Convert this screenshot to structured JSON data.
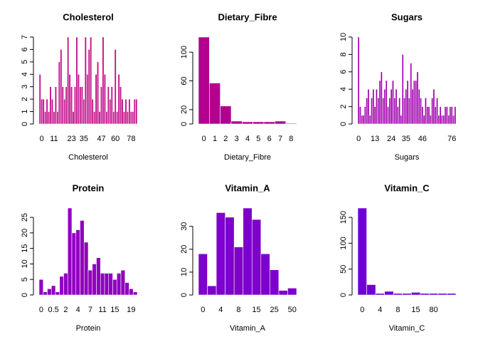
{
  "chart_data": [
    {
      "type": "bar",
      "title": "Cholesterol",
      "xlabel": "Cholesterol",
      "color": "#c2108a",
      "categories": [
        null,
        "0",
        null,
        null,
        null,
        null,
        null,
        null,
        "11",
        null,
        null,
        null,
        null,
        null,
        null,
        null,
        null,
        null,
        "23",
        null,
        null,
        null,
        null,
        null,
        null,
        "35",
        null,
        null,
        null,
        null,
        null,
        null,
        null,
        null,
        null,
        "47",
        null,
        null,
        null,
        null,
        null,
        null,
        null,
        "60",
        null,
        null,
        null,
        null,
        null,
        null,
        null,
        null,
        "78",
        null,
        null,
        null
      ],
      "values": [
        4,
        2,
        2,
        1,
        2,
        1,
        3,
        2,
        1,
        3,
        1,
        5,
        6,
        3,
        2,
        3,
        7,
        4,
        3,
        1,
        3,
        7,
        4,
        3,
        3,
        2,
        7,
        4,
        6,
        7,
        2,
        1,
        4,
        5,
        1,
        3,
        7,
        4,
        1,
        3,
        2,
        3,
        1,
        6,
        1,
        4,
        3,
        2,
        1,
        2,
        1,
        2,
        1,
        1,
        2,
        2
      ],
      "ylim": [
        0,
        7
      ],
      "yticks": [
        0,
        1,
        2,
        3,
        4,
        5,
        6,
        7
      ]
    },
    {
      "type": "bar",
      "title": "Dietary_Fibre",
      "xlabel": "Dietary_Fibre",
      "color": "#b3008f",
      "categories": [
        "0",
        "1",
        "2",
        "3",
        "4",
        "5",
        "6",
        "7",
        "8"
      ],
      "values": [
        121,
        57,
        25,
        4,
        3,
        3,
        3,
        4,
        1
      ],
      "ylim": [
        0,
        121
      ],
      "yticks": [
        0,
        20,
        60,
        100
      ]
    },
    {
      "type": "bar",
      "title": "Sugars",
      "xlabel": "Sugars",
      "color": "#a000ad",
      "categories": [
        "0",
        null,
        null,
        null,
        null,
        null,
        null,
        null,
        null,
        null,
        "13",
        null,
        null,
        null,
        null,
        null,
        null,
        null,
        null,
        null,
        "24",
        null,
        null,
        null,
        null,
        null,
        null,
        null,
        null,
        "35",
        null,
        null,
        null,
        null,
        null,
        null,
        null,
        null,
        null,
        "46",
        null,
        null,
        null,
        null,
        null,
        null,
        null,
        null,
        null,
        null,
        null,
        null,
        null,
        null,
        null,
        null,
        null,
        "76",
        null,
        null
      ],
      "values": [
        10,
        2,
        1,
        1,
        2,
        3,
        4,
        1,
        3,
        4,
        2,
        4,
        3,
        5,
        6,
        3,
        4,
        5,
        2,
        3,
        4,
        5,
        3,
        4,
        2,
        3,
        1,
        8,
        3,
        4,
        5,
        3,
        7,
        4,
        5,
        5,
        6,
        4,
        3,
        2,
        1,
        3,
        2,
        2,
        1,
        3,
        4,
        2,
        3,
        1,
        2,
        1,
        1,
        2,
        2,
        1,
        2,
        2,
        1,
        2
      ],
      "ylim": [
        0,
        10
      ],
      "yticks": [
        0,
        2,
        4,
        6,
        8,
        10
      ]
    },
    {
      "type": "bar",
      "title": "Protein",
      "xlabel": "Protein",
      "color": "#8f00bf",
      "categories": [
        "0",
        null,
        null,
        "0.5",
        null,
        null,
        "2",
        null,
        null,
        "4",
        null,
        null,
        "7",
        null,
        null,
        "11",
        null,
        null,
        "15",
        null,
        null,
        null,
        "19",
        null
      ],
      "values": [
        5,
        1,
        2,
        3,
        1,
        6,
        7,
        28,
        20,
        21,
        24,
        17,
        8,
        10,
        12,
        7,
        7,
        7,
        5,
        7,
        8,
        4,
        2,
        1
      ],
      "ylim": [
        0,
        28
      ],
      "yticks": [
        0,
        5,
        10,
        15,
        20,
        25
      ]
    },
    {
      "type": "bar",
      "title": "Vitamin_A",
      "xlabel": "Vitamin_A",
      "color": "#7d00cc",
      "categories": [
        "0",
        null,
        "4",
        null,
        "8",
        null,
        "15",
        null,
        "25",
        null,
        "50"
      ],
      "values": [
        18,
        4,
        36,
        34,
        21,
        38,
        33,
        18,
        11,
        2,
        3
      ],
      "ylim": [
        0,
        38
      ],
      "yticks": [
        0,
        10,
        20,
        30
      ]
    },
    {
      "type": "bar",
      "title": "Vitamin_C",
      "xlabel": "Vitamin_C",
      "color": "#6e00d6",
      "categories": [
        "0",
        null,
        "4",
        null,
        "8",
        null,
        "15",
        null,
        "80",
        null,
        null
      ],
      "values": [
        168,
        20,
        3,
        7,
        3,
        3,
        5,
        3,
        3,
        3,
        3
      ],
      "ylim": [
        0,
        168
      ],
      "yticks": [
        0,
        50,
        100,
        150
      ]
    }
  ]
}
